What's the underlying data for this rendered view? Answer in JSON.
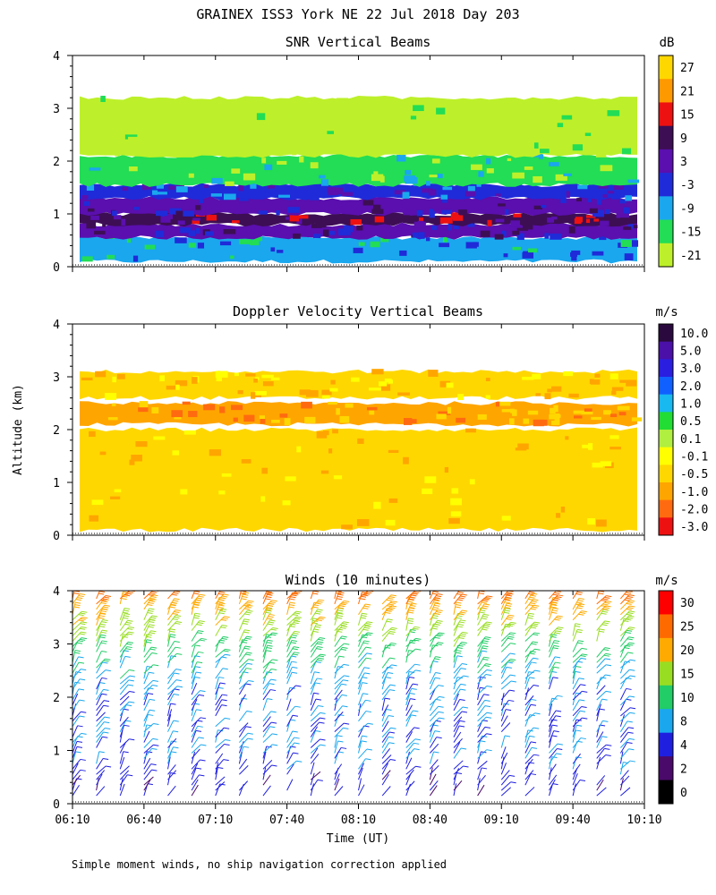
{
  "figure": {
    "title": "GRAINEX ISS3 York NE  22 Jul 2018 Day 203",
    "ylabel": "Altitude (km)",
    "xlabel": "Time (UT)",
    "footnote": "Simple moment winds, no ship navigation correction applied",
    "x_ticks": [
      "06:10",
      "06:40",
      "07:10",
      "07:40",
      "08:10",
      "08:40",
      "09:10",
      "09:40",
      "10:10"
    ],
    "y_ticks": [
      "0",
      "1",
      "2",
      "3",
      "4"
    ]
  },
  "chart_data": [
    {
      "type": "heatmap",
      "title": "SNR Vertical Beams",
      "colorbar": {
        "unit": "dB",
        "labels": [
          "27",
          "21",
          "15",
          "9",
          "3",
          "-3",
          "-9",
          "-15",
          "-21"
        ],
        "colors": [
          "#ffd700",
          "#ff9900",
          "#ee1111",
          "#3d0e54",
          "#5a0fae",
          "#1f2bd8",
          "#1aa7ee",
          "#22dd55",
          "#bdf02a"
        ]
      },
      "x_range": [
        "06:10",
        "10:10"
      ],
      "ylim": [
        0,
        4
      ],
      "ylabel": "Altitude (km)",
      "layers": [
        {
          "from_km": 0.1,
          "to_km": 0.55,
          "color_db": -9
        },
        {
          "from_km": 0.55,
          "to_km": 0.8,
          "color_db": 3
        },
        {
          "from_km": 0.8,
          "to_km": 1.0,
          "color_db": 9
        },
        {
          "from_km": 1.0,
          "to_km": 1.3,
          "color_db": 3
        },
        {
          "from_km": 1.3,
          "to_km": 1.55,
          "color_db": -3
        },
        {
          "from_km": 1.55,
          "to_km": 2.1,
          "color_db": -15
        },
        {
          "from_km": 2.1,
          "to_km": 3.2,
          "color_db": -21
        }
      ]
    },
    {
      "type": "heatmap",
      "title": "Doppler Velocity Vertical Beams",
      "colorbar": {
        "unit": "m/s",
        "labels": [
          "10.0",
          "5.0",
          "3.0",
          "2.0",
          "1.0",
          "0.5",
          "0.1",
          "-0.1",
          "-0.5",
          "-1.0",
          "-2.0",
          "-3.0"
        ],
        "colors": [
          "#2a0a3e",
          "#4a10a8",
          "#2a1ee0",
          "#1060ff",
          "#18b8f0",
          "#22dd33",
          "#b0ee40",
          "#ffff00",
          "#ffd700",
          "#ffa500",
          "#ff6a10",
          "#ee1111"
        ]
      },
      "x_range": [
        "06:10",
        "10:10"
      ],
      "ylim": [
        0,
        4
      ],
      "ylabel": "Altitude (km)",
      "layers": [
        {
          "from_km": 0.1,
          "to_km": 2.0,
          "color_ms": -0.5
        },
        {
          "from_km": 2.1,
          "to_km": 2.5,
          "color_ms": -1.0
        },
        {
          "from_km": 2.6,
          "to_km": 3.1,
          "color_ms": -0.5
        }
      ]
    },
    {
      "type": "scatter",
      "title": "Winds (10 minutes)",
      "colorbar": {
        "unit": "m/s",
        "labels": [
          "30",
          "25",
          "20",
          "15",
          "10",
          "8",
          "4",
          "2",
          "0"
        ],
        "colors": [
          "#ff0000",
          "#ff6a00",
          "#ffaa00",
          "#99dd22",
          "#22cc66",
          "#1aa7ee",
          "#1f1fe0",
          "#4a0a6a",
          "#000000"
        ]
      },
      "x_range": [
        "06:10",
        "10:10"
      ],
      "ylim": [
        0,
        4
      ],
      "ylabel": "Altitude (km)",
      "xlabel": "Time (UT)",
      "profiles_every_min": 10,
      "speed_profile": [
        {
          "alt_km": 0.3,
          "speed_ms": 4
        },
        {
          "alt_km": 1.0,
          "speed_ms": 6
        },
        {
          "alt_km": 2.0,
          "speed_ms": 6
        },
        {
          "alt_km": 3.0,
          "speed_ms": 12
        },
        {
          "alt_km": 3.6,
          "speed_ms": 20
        },
        {
          "alt_km": 4.0,
          "speed_ms": 28
        }
      ]
    }
  ]
}
